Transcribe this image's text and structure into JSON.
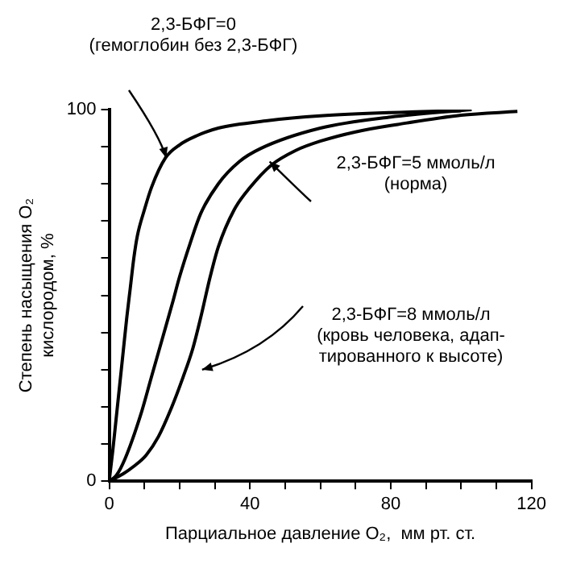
{
  "chart_data": {
    "type": "line",
    "xlabel": "Парциальное давление O₂,  мм рт. ст.",
    "ylabel": "Степень насыщения O₂\nкислородом, %",
    "xlim": [
      0,
      120
    ],
    "xticks": [
      0,
      {
        "value": 10,
        "label": null
      },
      {
        "value": 20,
        "label": null
      },
      {
        "value": 30,
        "label": null
      },
      40,
      {
        "value": 50,
        "label": null
      },
      {
        "value": 60,
        "label": null
      },
      {
        "value": 70,
        "label": null
      },
      80,
      {
        "value": 90,
        "label": null
      },
      {
        "value": 100,
        "label": null
      },
      {
        "value": 110,
        "label": null
      },
      120
    ],
    "ylim": [
      0,
      100
    ],
    "yticks": [
      0,
      {
        "value": 10,
        "label": null
      },
      {
        "value": 20,
        "label": null
      },
      {
        "value": 30,
        "label": null
      },
      {
        "value": 40,
        "label": null
      },
      {
        "value": 50,
        "label": null
      },
      {
        "value": 60,
        "label": null
      },
      {
        "value": 70,
        "label": null
      },
      {
        "value": 80,
        "label": null
      },
      {
        "value": 90,
        "label": null
      },
      100
    ],
    "grid": false,
    "legend": false,
    "marker": "none",
    "line_style": "solid",
    "series": [
      {
        "color": "#000000",
        "x": [
          0,
          1,
          2,
          3,
          4,
          5,
          6,
          7,
          8,
          10,
          12,
          16,
          20,
          25,
          31,
          45,
          60,
          80,
          100
        ],
        "values": [
          0,
          8,
          17,
          26,
          35,
          44,
          52,
          60,
          66,
          73,
          79,
          87,
          90.5,
          93,
          95,
          97,
          98.3,
          99.2,
          99.7
        ]
      },
      {
        "color": "#000000",
        "x": [
          0,
          2,
          4.5,
          9,
          12,
          15,
          18,
          20,
          23,
          26,
          31,
          37,
          43,
          60,
          80,
          103
        ],
        "values": [
          0,
          1.5,
          6,
          18,
          28,
          38,
          48,
          55,
          64,
          72,
          80,
          86,
          89.5,
          95,
          98,
          100
        ]
      },
      {
        "color": "#000000",
        "x": [
          0,
          4,
          7,
          10.5,
          14,
          17.8,
          21,
          23.7,
          26,
          28.7,
          31,
          35.5,
          40,
          46,
          53,
          60,
          70,
          82,
          100,
          116
        ],
        "values": [
          0,
          2,
          4,
          7,
          12,
          20,
          28,
          35.5,
          44,
          55,
          63,
          73,
          79,
          85,
          89,
          91.5,
          94,
          96,
          98.5,
          99.5
        ]
      }
    ],
    "annotations": [
      "2,3-БФГ=0\n(гемоглобин без 2,3-БФГ)",
      "2,3-БФГ=5 ммоль/л\n(норма)",
      "2,3-БФГ=8 ммоль/л\n(кровь человека, адап-\nтированного к высоте)"
    ]
  }
}
